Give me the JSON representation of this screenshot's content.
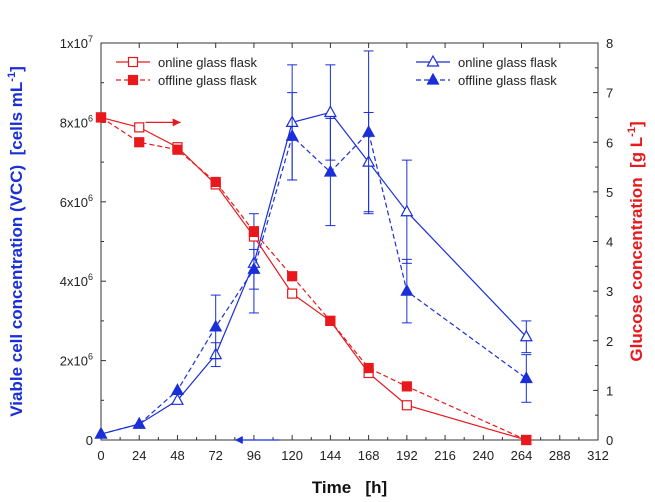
{
  "chart_data": {
    "type": "line",
    "xlabel": {
      "prefix": "Time",
      "unit": "[h]"
    },
    "y_left": {
      "label_main": "Viable cell concentration (VCC)",
      "label_unit": "[cells mL",
      "label_unit_sup": "-1",
      "label_unit_end": "]",
      "range": [
        0,
        10000000
      ],
      "tick_labels": [
        {
          "value": 0,
          "mantissa": "0",
          "exp": ""
        },
        {
          "value": 2000000,
          "mantissa": "2x10",
          "exp": "6"
        },
        {
          "value": 4000000,
          "mantissa": "4x10",
          "exp": "6"
        },
        {
          "value": 6000000,
          "mantissa": "6x10",
          "exp": "6"
        },
        {
          "value": 8000000,
          "mantissa": "8x10",
          "exp": "6"
        },
        {
          "value": 10000000,
          "mantissa": "1x10",
          "exp": "7"
        }
      ]
    },
    "y_right": {
      "label_main": "Glucose concentration",
      "label_unit": "[g L",
      "label_unit_sup": "-1",
      "label_unit_end": "]",
      "range": [
        0,
        8
      ],
      "ticks": [
        0,
        1,
        2,
        3,
        4,
        5,
        6,
        7,
        8
      ]
    },
    "x_range": [
      0,
      312
    ],
    "x_ticks": [
      0,
      24,
      48,
      72,
      96,
      120,
      144,
      168,
      192,
      216,
      240,
      264,
      288,
      312
    ],
    "grid": false,
    "legends": [
      {
        "placement": "top-left",
        "series": [
          "online glass flask (glucose)",
          "offline glass flask (glucose)"
        ]
      },
      {
        "placement": "top-right",
        "series": [
          "online glass flask (VCC)",
          "offline glass flask (VCC)"
        ]
      }
    ],
    "colors": {
      "vcc": "#1a2fd8",
      "glucose": "#e8191c"
    },
    "series": [
      {
        "name": "online glass flask",
        "axis": "left",
        "color": "#1a2fd8",
        "marker": "triangle-open",
        "dash": false,
        "x": [
          0,
          24,
          48,
          72,
          96,
          120,
          144,
          168,
          192,
          267
        ],
        "y": [
          150000,
          400000,
          1000000,
          2150000,
          4450000,
          8000000,
          8250000,
          7000000,
          5750000,
          2600000
        ],
        "error": [
          0,
          0,
          0,
          300000,
          1250000,
          1450000,
          1200000,
          1250000,
          1300000,
          400000
        ]
      },
      {
        "name": "offline glass flask",
        "axis": "left",
        "color": "#1a2fd8",
        "marker": "triangle-filled",
        "dash": true,
        "x": [
          0,
          24,
          48,
          72,
          96,
          120,
          144,
          168,
          192,
          267
        ],
        "y": [
          150000,
          400000,
          1250000,
          2850000,
          4300000,
          7650000,
          6750000,
          7750000,
          3750000,
          1550000
        ],
        "error": [
          0,
          0,
          0,
          800000,
          500000,
          1100000,
          1350000,
          2050000,
          800000,
          600000
        ]
      },
      {
        "name": "online glass flask",
        "axis": "right",
        "color": "#e8191c",
        "marker": "square-open",
        "dash": false,
        "x": [
          0,
          24,
          48,
          72,
          96,
          120,
          144,
          168,
          192,
          267
        ],
        "y": [
          6.5,
          6.3,
          5.9,
          5.15,
          4.1,
          2.95,
          2.4,
          1.35,
          0.7,
          0
        ],
        "error": [
          0,
          0,
          0,
          0,
          0,
          0,
          0,
          0,
          0,
          0
        ]
      },
      {
        "name": "offline glass flask",
        "axis": "right",
        "color": "#e8191c",
        "marker": "square-filled",
        "dash": true,
        "x": [
          0,
          24,
          48,
          72,
          96,
          120,
          144,
          168,
          192,
          267
        ],
        "y": [
          6.5,
          6.0,
          5.85,
          5.2,
          4.2,
          3.3,
          2.4,
          1.45,
          1.08,
          0
        ],
        "error": [
          0,
          0,
          0,
          0,
          0.1,
          0,
          0,
          0,
          0,
          0
        ]
      }
    ],
    "annotations": [
      {
        "type": "arrow",
        "direction": "right",
        "color": "#e8191c",
        "x_from": 28,
        "x_to": 50,
        "y_axis": "right",
        "y": 6.4
      },
      {
        "type": "arrow",
        "direction": "left",
        "color": "#1a2fd8",
        "x_from": 112,
        "x_to": 84,
        "y_axis": "left",
        "y": 7.4
      }
    ]
  }
}
